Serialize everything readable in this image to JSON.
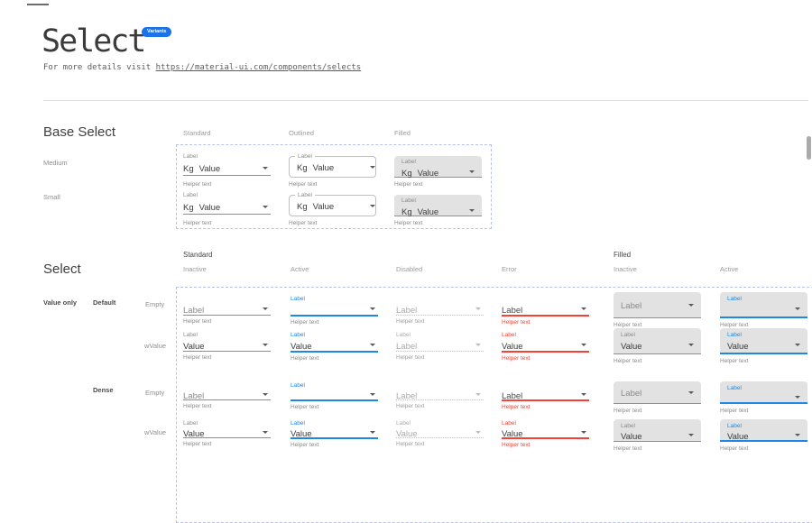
{
  "page": {
    "title": "Select",
    "badge": "Variants",
    "subtitle_prefix": "For more details visit ",
    "subtitle_link": "https://material-ui.com/components/selects"
  },
  "colors": {
    "accent_blue": "#1E88E5",
    "error_red": "#F44336",
    "badge_blue": "#1A73E8",
    "dashed_border": "#B9BFF2",
    "filled_background": "#E2E2E2"
  },
  "base_section": {
    "heading": "Base Select",
    "column_headers": [
      "Standard",
      "Outlined",
      "Filled"
    ],
    "row_labels": [
      "Medium",
      "Small"
    ],
    "select": {
      "label": "Label",
      "adornment": "Kg",
      "value": "Value",
      "helper": "Helper text"
    }
  },
  "select_section": {
    "heading": "Select",
    "group_headers": [
      "Standard",
      "Filled"
    ],
    "state_headers": [
      "Inactive",
      "Active",
      "Disabled",
      "Error",
      "Inactive",
      "Active"
    ],
    "row_group_label": "Value only",
    "density_labels": [
      "Default",
      "Dense"
    ],
    "content_labels": [
      "Empty",
      "wValue"
    ],
    "select": {
      "label": "Label",
      "value": "Value",
      "helper": "Helper text"
    },
    "columns": [
      {
        "variant": "standard",
        "state": "inactive"
      },
      {
        "variant": "standard",
        "state": "active"
      },
      {
        "variant": "standard",
        "state": "disabled"
      },
      {
        "variant": "standard",
        "state": "error"
      },
      {
        "variant": "filled",
        "state": "inactive"
      },
      {
        "variant": "filled",
        "state": "active"
      }
    ],
    "rows": [
      {
        "density": "default",
        "content": "empty"
      },
      {
        "density": "default",
        "content": "wValue"
      },
      {
        "density": "dense",
        "content": "empty"
      },
      {
        "density": "dense",
        "content": "wValue"
      }
    ],
    "value_overrides": [
      {
        "row": 1,
        "col": 2,
        "value": "Label"
      }
    ]
  }
}
